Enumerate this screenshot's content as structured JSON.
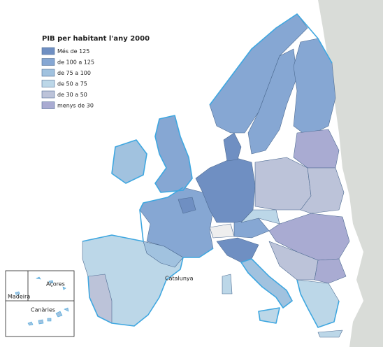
{
  "legend": {
    "title": "PIB per habitant l'any 2000",
    "items": [
      {
        "label": "Més de 125",
        "color": "#6f8fc2"
      },
      {
        "label": "de 100 a 125",
        "color": "#86a7d3"
      },
      {
        "label": "de 75 a 100",
        "color": "#a1c2df"
      },
      {
        "label": "de 50 a 75",
        "color": "#bcd7e8"
      },
      {
        "label": "de 30 a 50",
        "color": "#bcc3d9"
      },
      {
        "label": "menys de 30",
        "color": "#a9abd2"
      }
    ]
  },
  "labels": {
    "catalunya": "Catalunya",
    "azores": "Açores",
    "madeira": "Madeira",
    "canaries": "Canàries"
  }
}
